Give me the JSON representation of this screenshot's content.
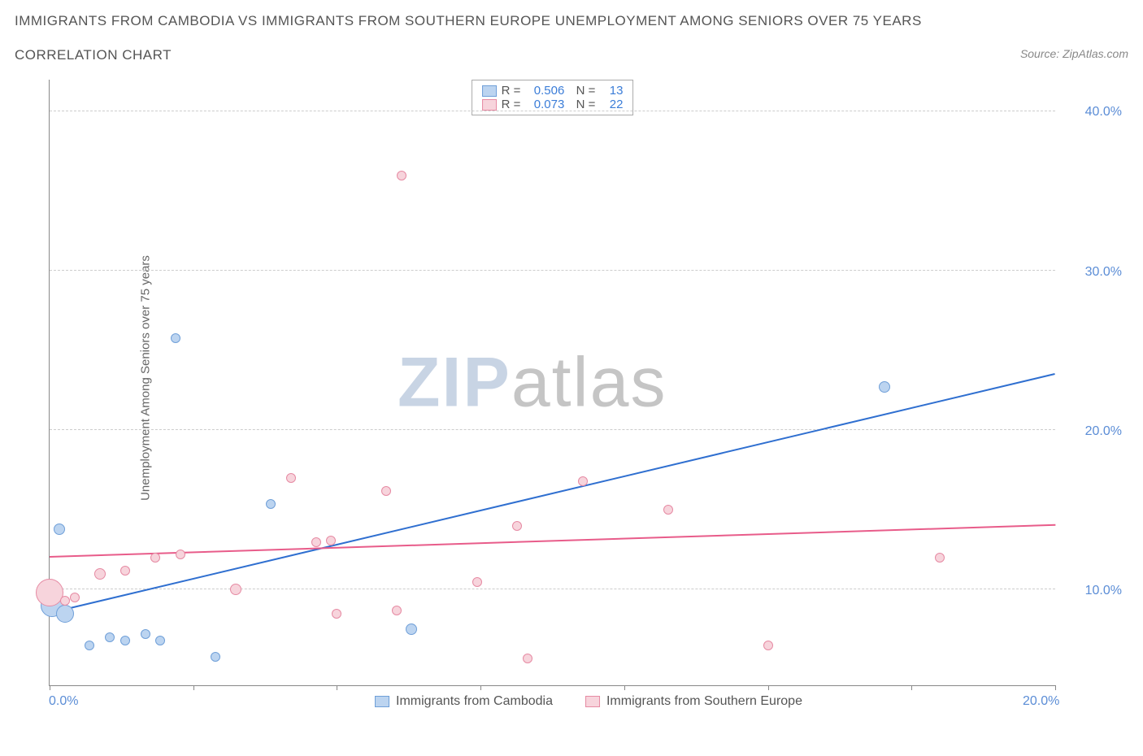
{
  "title": "IMMIGRANTS FROM CAMBODIA VS IMMIGRANTS FROM SOUTHERN EUROPE UNEMPLOYMENT AMONG SENIORS OVER 75 YEARS",
  "subtitle": "CORRELATION CHART",
  "source": "Source: ZipAtlas.com",
  "y_axis_label": "Unemployment Among Seniors over 75 years",
  "watermark_bold": "ZIP",
  "watermark_light": "atlas",
  "chart": {
    "type": "scatter",
    "xlim": [
      0,
      20
    ],
    "ylim": [
      4,
      42
    ],
    "x_ticks": [
      0,
      2.86,
      5.71,
      8.57,
      11.43,
      14.29,
      17.14,
      20
    ],
    "x_tick_labels": {
      "0": "0.0%",
      "20": "20.0%"
    },
    "y_ticks": [
      10,
      20,
      30,
      40
    ],
    "y_tick_labels": [
      "10.0%",
      "20.0%",
      "30.0%",
      "40.0%"
    ],
    "grid_color": "#cccccc",
    "axis_color": "#888888",
    "background_color": "#ffffff",
    "series": [
      {
        "name": "Immigrants from Cambodia",
        "fill": "#bcd4f0",
        "stroke": "#6f9fd8",
        "trend_color": "#2f6fd0",
        "R": "0.506",
        "N": "13",
        "trend": {
          "x1": 0,
          "y1": 8.5,
          "x2": 20,
          "y2": 23.5
        },
        "points": [
          {
            "x": 0.2,
            "y": 13.8,
            "r": 7
          },
          {
            "x": 0.05,
            "y": 9.0,
            "r": 14
          },
          {
            "x": 0.3,
            "y": 8.5,
            "r": 11
          },
          {
            "x": 0.8,
            "y": 6.5,
            "r": 6
          },
          {
            "x": 1.2,
            "y": 7.0,
            "r": 6
          },
          {
            "x": 1.5,
            "y": 6.8,
            "r": 6
          },
          {
            "x": 1.9,
            "y": 7.2,
            "r": 6
          },
          {
            "x": 2.2,
            "y": 6.8,
            "r": 6
          },
          {
            "x": 2.5,
            "y": 25.8,
            "r": 6
          },
          {
            "x": 3.3,
            "y": 5.8,
            "r": 6
          },
          {
            "x": 4.4,
            "y": 15.4,
            "r": 6
          },
          {
            "x": 7.2,
            "y": 7.5,
            "r": 7
          },
          {
            "x": 16.6,
            "y": 22.7,
            "r": 7
          }
        ]
      },
      {
        "name": "Immigrants from Southern Europe",
        "fill": "#f7d4dc",
        "stroke": "#e68aa3",
        "trend_color": "#e85c8a",
        "R": "0.073",
        "N": "22",
        "trend": {
          "x1": 0,
          "y1": 12.0,
          "x2": 20,
          "y2": 14.0
        },
        "points": [
          {
            "x": 0.0,
            "y": 9.8,
            "r": 17
          },
          {
            "x": 0.3,
            "y": 9.3,
            "r": 6
          },
          {
            "x": 0.5,
            "y": 9.5,
            "r": 6
          },
          {
            "x": 1.0,
            "y": 11.0,
            "r": 7
          },
          {
            "x": 1.5,
            "y": 11.2,
            "r": 6
          },
          {
            "x": 2.1,
            "y": 12.0,
            "r": 6
          },
          {
            "x": 2.6,
            "y": 12.2,
            "r": 6
          },
          {
            "x": 3.7,
            "y": 10.0,
            "r": 7
          },
          {
            "x": 4.8,
            "y": 17.0,
            "r": 6
          },
          {
            "x": 5.3,
            "y": 13.0,
            "r": 6
          },
          {
            "x": 5.6,
            "y": 13.1,
            "r": 6
          },
          {
            "x": 5.7,
            "y": 8.5,
            "r": 6
          },
          {
            "x": 6.7,
            "y": 16.2,
            "r": 6
          },
          {
            "x": 6.9,
            "y": 8.7,
            "r": 6
          },
          {
            "x": 7.0,
            "y": 36.0,
            "r": 6
          },
          {
            "x": 8.5,
            "y": 10.5,
            "r": 6
          },
          {
            "x": 9.3,
            "y": 14.0,
            "r": 6
          },
          {
            "x": 9.5,
            "y": 5.7,
            "r": 6
          },
          {
            "x": 10.6,
            "y": 16.8,
            "r": 6
          },
          {
            "x": 12.3,
            "y": 15.0,
            "r": 6
          },
          {
            "x": 14.3,
            "y": 6.5,
            "r": 6
          },
          {
            "x": 17.7,
            "y": 12.0,
            "r": 6
          }
        ]
      }
    ]
  },
  "bottom_legend": [
    {
      "label": "Immigrants from Cambodia",
      "fill": "#bcd4f0",
      "stroke": "#6f9fd8"
    },
    {
      "label": "Immigrants from Southern Europe",
      "fill": "#f7d4dc",
      "stroke": "#e68aa3"
    }
  ]
}
